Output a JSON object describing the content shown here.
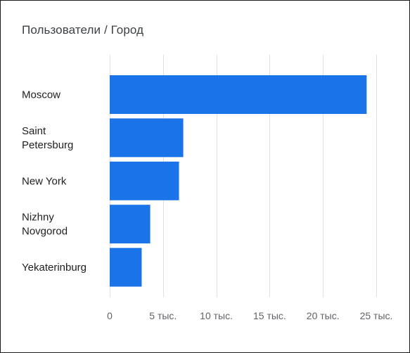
{
  "card": {
    "title": "Пользователи / Город"
  },
  "colors": {
    "bar": "#1a73e8",
    "grid": "#e0e0e0",
    "tick_text": "#5f6368",
    "category_text": "#202124"
  },
  "chart_data": {
    "type": "bar",
    "orientation": "horizontal",
    "title": "Пользователи / Город",
    "categories": [
      [
        "Moscow"
      ],
      [
        "Saint",
        "Petersburg"
      ],
      [
        "New York"
      ],
      [
        "Nizhny",
        "Novgorod"
      ],
      [
        "Yekaterinburg"
      ]
    ],
    "values": [
      24100,
      6900,
      6500,
      3800,
      3000
    ],
    "xlim": [
      0,
      25000
    ],
    "xticks": [
      0,
      5000,
      10000,
      15000,
      20000,
      25000
    ],
    "xtick_labels": [
      "0",
      "5 тыс.",
      "10 тыс.",
      "15 тыс.",
      "20 тыс.",
      "25 тыс."
    ],
    "grid": true,
    "legend": "none"
  }
}
